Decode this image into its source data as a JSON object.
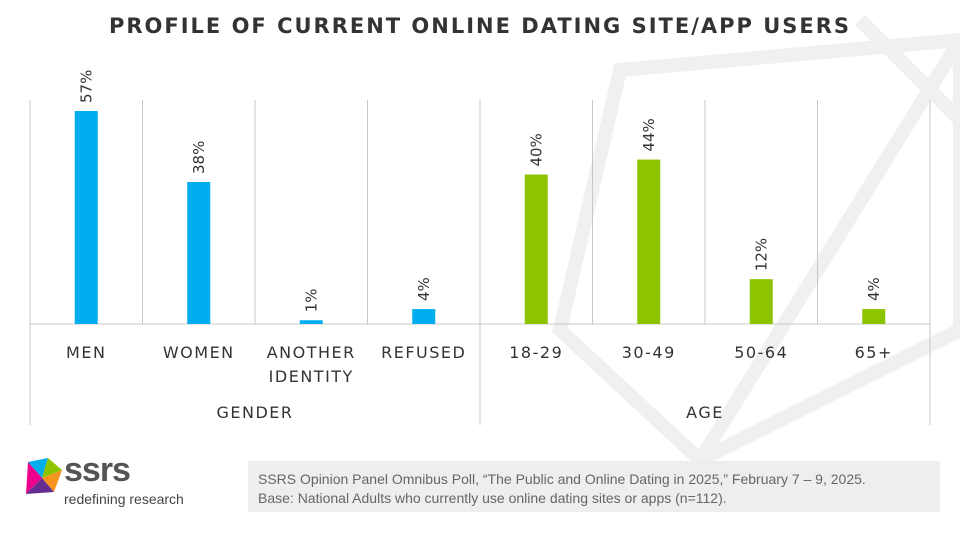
{
  "title": "PROFILE OF CURRENT ONLINE DATING SITE/APP USERS",
  "colors": {
    "gender": "#00aeef",
    "age": "#8dc400",
    "text": "#333333",
    "grid": "#c8c8c8"
  },
  "chart_data": {
    "type": "bar",
    "title": "PROFILE OF CURRENT ONLINE DATING SITE/APP USERS",
    "value_unit": "%",
    "ylim": [
      0,
      60
    ],
    "grid": false,
    "groups": [
      {
        "name": "GENDER",
        "color": "#00aeef",
        "categories": [
          [
            "MEN"
          ],
          [
            "WOMEN"
          ],
          [
            "ANOTHER",
            "IDENTITY"
          ],
          [
            "REFUSED"
          ]
        ],
        "values": [
          57,
          38,
          1,
          4
        ],
        "labels": [
          "57%",
          "38%",
          "1%",
          "4%"
        ]
      },
      {
        "name": "AGE",
        "color": "#8dc400",
        "categories": [
          [
            "18-29"
          ],
          [
            "30-49"
          ],
          [
            "50-64"
          ],
          [
            "65+"
          ]
        ],
        "values": [
          40,
          44,
          12,
          4
        ],
        "labels": [
          "40%",
          "44%",
          "12%",
          "4%"
        ]
      }
    ]
  },
  "logo": {
    "wordmark": "ssrs",
    "tagline": "redefining research"
  },
  "source": {
    "line1": "SSRS Opinion Panel Omnibus Poll, “The Public and Online Dating in 2025,” February 7 – 9, 2025.",
    "line2": "Base: National Adults who currently use online dating sites or apps (n=112)."
  }
}
